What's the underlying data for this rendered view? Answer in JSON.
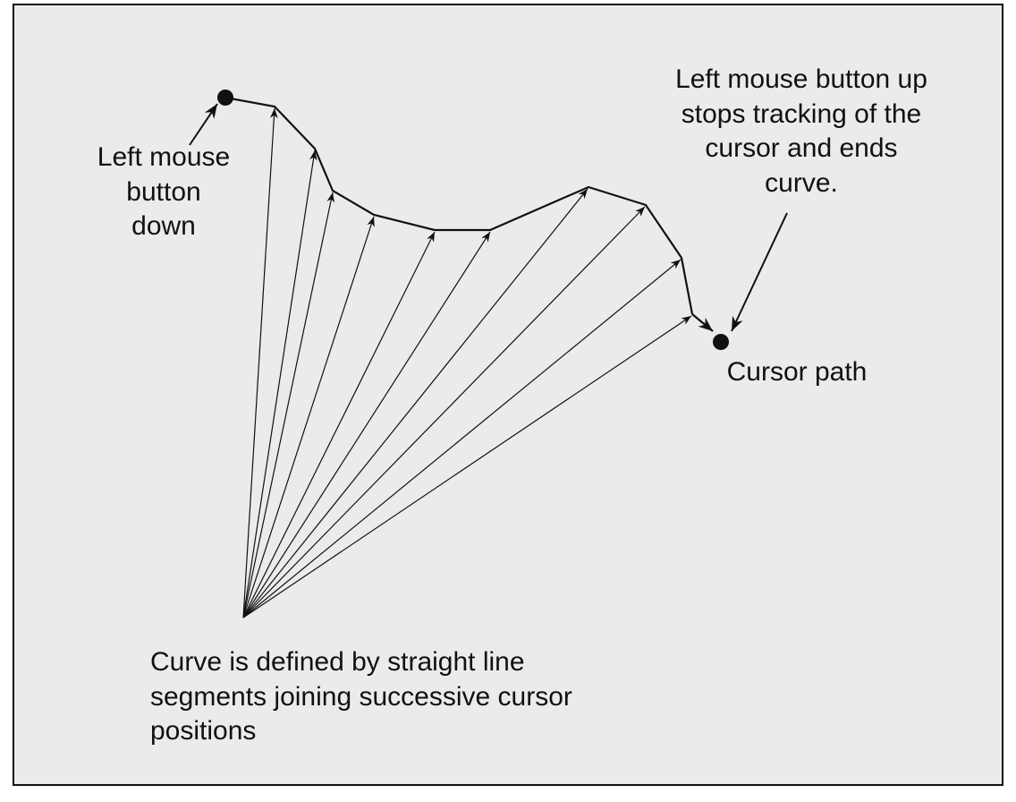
{
  "labels": {
    "start": [
      "Left mouse",
      "button",
      "down"
    ],
    "end": [
      "Left mouse button up",
      "stops tracking of the",
      "cursor and ends",
      "curve."
    ],
    "cursor_path": "Cursor path",
    "caption": [
      "Curve is defined by straight line",
      "segments joining successive cursor",
      "positions"
    ]
  }
}
